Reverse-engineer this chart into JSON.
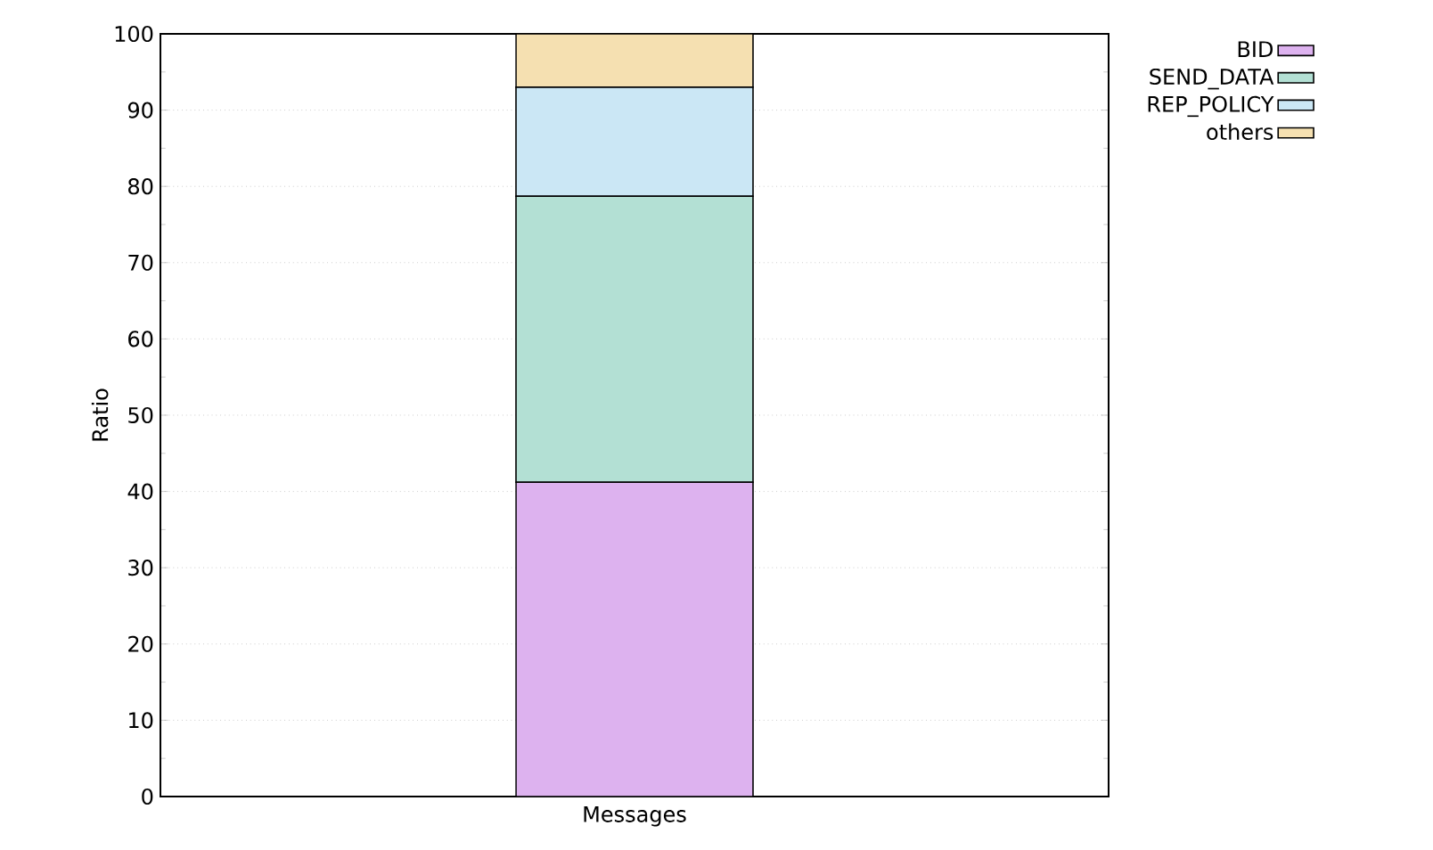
{
  "chart_data": {
    "type": "bar",
    "stacked": true,
    "categories": [
      "Messages"
    ],
    "ylabel": "Ratio",
    "series": [
      {
        "name": "BID",
        "color": "#ddb2ef",
        "values": [
          41.2
        ]
      },
      {
        "name": "SEND_DATA",
        "color": "#b3e0d4",
        "values": [
          37.5
        ]
      },
      {
        "name": "REP_POLICY",
        "color": "#cbe7f5",
        "values": [
          14.3
        ]
      },
      {
        "name": "others",
        "color": "#f5e0b1",
        "values": [
          7.0
        ]
      }
    ],
    "ylim": [
      0,
      100
    ],
    "yticks": [
      0,
      10,
      20,
      30,
      40,
      50,
      60,
      70,
      80,
      90,
      100
    ],
    "grid": "y",
    "legend": "top right"
  }
}
